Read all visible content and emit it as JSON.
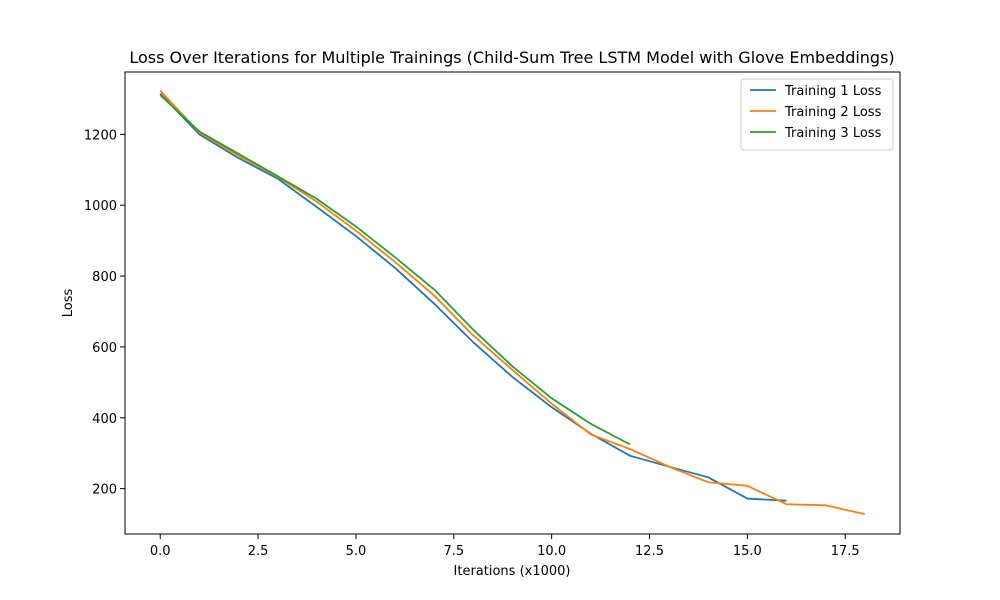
{
  "chart_data": {
    "type": "line",
    "title": "Loss Over Iterations for Multiple Trainings (Child-Sum Tree LSTM Model with Glove Embeddings)",
    "xlabel": "Iterations (x1000)",
    "ylabel": "Loss",
    "xlim": [
      -0.9,
      18.9
    ],
    "ylim": [
      72,
      1376
    ],
    "xticks": [
      0.0,
      2.5,
      5.0,
      7.5,
      10.0,
      12.5,
      15.0,
      17.5
    ],
    "xtick_labels": [
      "0.0",
      "2.5",
      "5.0",
      "7.5",
      "10.0",
      "12.5",
      "15.0",
      "17.5"
    ],
    "yticks": [
      200,
      400,
      600,
      800,
      1000,
      1200
    ],
    "ytick_labels": [
      "200",
      "400",
      "600",
      "800",
      "1000",
      "1200"
    ],
    "grid": false,
    "legend_position": "top-right",
    "series": [
      {
        "name": "Training 1 Loss",
        "color": "#1f77b4",
        "x": [
          0,
          1,
          2,
          3,
          4,
          5,
          6,
          7,
          8,
          9,
          10,
          11,
          12,
          13,
          14,
          15,
          16
        ],
        "y": [
          1315,
          1200,
          1133,
          1075,
          995,
          913,
          823,
          722,
          613,
          515,
          430,
          355,
          293,
          262,
          232,
          172,
          166
        ]
      },
      {
        "name": "Training 2 Loss",
        "color": "#ff7f0e",
        "x": [
          0,
          1,
          2,
          3,
          4,
          5,
          6,
          7,
          8,
          9,
          10,
          11,
          12,
          13,
          14,
          15,
          16,
          17,
          18
        ],
        "y": [
          1323,
          1205,
          1140,
          1080,
          1010,
          928,
          840,
          745,
          632,
          535,
          440,
          353,
          312,
          262,
          218,
          208,
          156,
          153,
          128
        ]
      },
      {
        "name": "Training 3 Loss",
        "color": "#2ca02c",
        "x": [
          0,
          1,
          2,
          3,
          4,
          5,
          6,
          7,
          8,
          9,
          10,
          11,
          12
        ],
        "y": [
          1311,
          1208,
          1145,
          1082,
          1018,
          940,
          853,
          762,
          648,
          545,
          455,
          383,
          325
        ]
      }
    ]
  }
}
